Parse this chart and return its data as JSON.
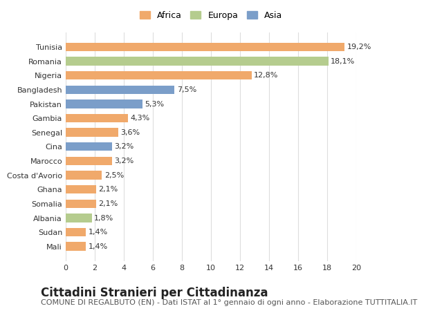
{
  "categories": [
    "Mali",
    "Sudan",
    "Albania",
    "Somalia",
    "Ghana",
    "Costa d'Avorio",
    "Marocco",
    "Cina",
    "Senegal",
    "Gambia",
    "Pakistan",
    "Bangladesh",
    "Nigeria",
    "Romania",
    "Tunisia"
  ],
  "values": [
    1.4,
    1.4,
    1.8,
    2.1,
    2.1,
    2.5,
    3.2,
    3.2,
    3.6,
    4.3,
    5.3,
    7.5,
    12.8,
    18.1,
    19.2
  ],
  "labels": [
    "1,4%",
    "1,4%",
    "1,8%",
    "2,1%",
    "2,1%",
    "2,5%",
    "3,2%",
    "3,2%",
    "3,6%",
    "4,3%",
    "5,3%",
    "7,5%",
    "12,8%",
    "18,1%",
    "19,2%"
  ],
  "continents": [
    "Africa",
    "Africa",
    "Europa",
    "Africa",
    "Africa",
    "Africa",
    "Africa",
    "Asia",
    "Africa",
    "Africa",
    "Asia",
    "Asia",
    "Africa",
    "Europa",
    "Africa"
  ],
  "colors": {
    "Africa": "#F0A96B",
    "Europa": "#B5CC8E",
    "Asia": "#7B9EC9"
  },
  "legend_labels": [
    "Africa",
    "Europa",
    "Asia"
  ],
  "title": "Cittadini Stranieri per Cittadinanza",
  "subtitle": "COMUNE DI REGALBUTO (EN) - Dati ISTAT al 1° gennaio di ogni anno - Elaborazione TUTTITALIA.IT",
  "xlim": [
    0,
    20
  ],
  "xticks": [
    0,
    2,
    4,
    6,
    8,
    10,
    12,
    14,
    16,
    18,
    20
  ],
  "background_color": "#ffffff",
  "grid_color": "#dddddd",
  "title_fontsize": 12,
  "subtitle_fontsize": 8,
  "label_fontsize": 8,
  "tick_fontsize": 8
}
